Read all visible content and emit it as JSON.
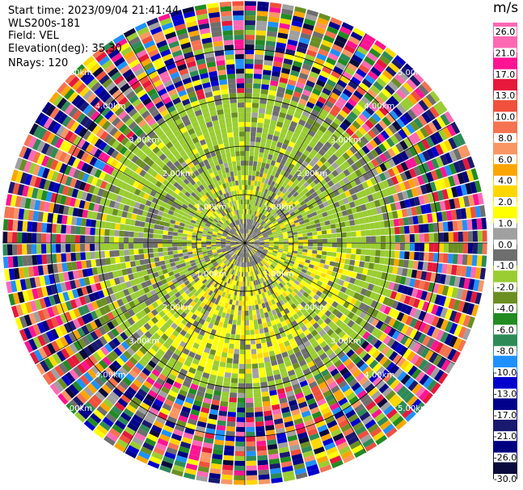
{
  "header": {
    "start_time": "Start time: 2023/09/04 21:41:44",
    "device": "WLS200s-181",
    "field": "Field: VEL",
    "elevation": "Elevation(deg): 35.30",
    "nrays": "NRays: 120"
  },
  "chart_data": {
    "type": "heatmap",
    "projection": "polar (PPI)",
    "field": "VEL",
    "units": "m/s",
    "n_rays": 120,
    "range_rings_km": [
      1.0,
      2.0,
      3.0,
      4.0,
      5.0
    ],
    "range_ring_label_format": "{r}0km",
    "max_range_km": 5.0,
    "colorbar": {
      "ticks": [
        "26.0",
        "21.0",
        "17.0",
        "13.0",
        "10.0",
        "8.0",
        "6.0",
        "4.0",
        "2.0",
        "1.0",
        "0.0",
        "-1.0",
        "-2.0",
        "-4.0",
        "-6.0",
        "-8.0",
        "-10.0",
        "-13.0",
        "-17.0",
        "-21.0",
        "-26.0",
        "-30.0"
      ],
      "colors": [
        "#ff69b4",
        "#ff1493",
        "#e6193c",
        "#f0503c",
        "#f57350",
        "#fa9664",
        "#ffa500",
        "#ffd700",
        "#ffff00",
        "#a0a0a0",
        "#6e6e6e",
        "#9acd32",
        "#6b8e23",
        "#228b22",
        "#2e8b57",
        "#1e90ff",
        "#0000cd",
        "#00008b",
        "#191970",
        "#000080",
        "#0a0a3c"
      ]
    },
    "approx_field_pattern": {
      "inner_km": "mixed -1.0 to 4.0 (gray, yellow, olive-green)",
      "mid_km_1_to_3": "mostly -2.0 to 0.0 (green/gray) with yellow 2.0-4.0 patches",
      "outer_km_3_to_5": "noisy, full scale -30.0 to 26.0"
    }
  }
}
